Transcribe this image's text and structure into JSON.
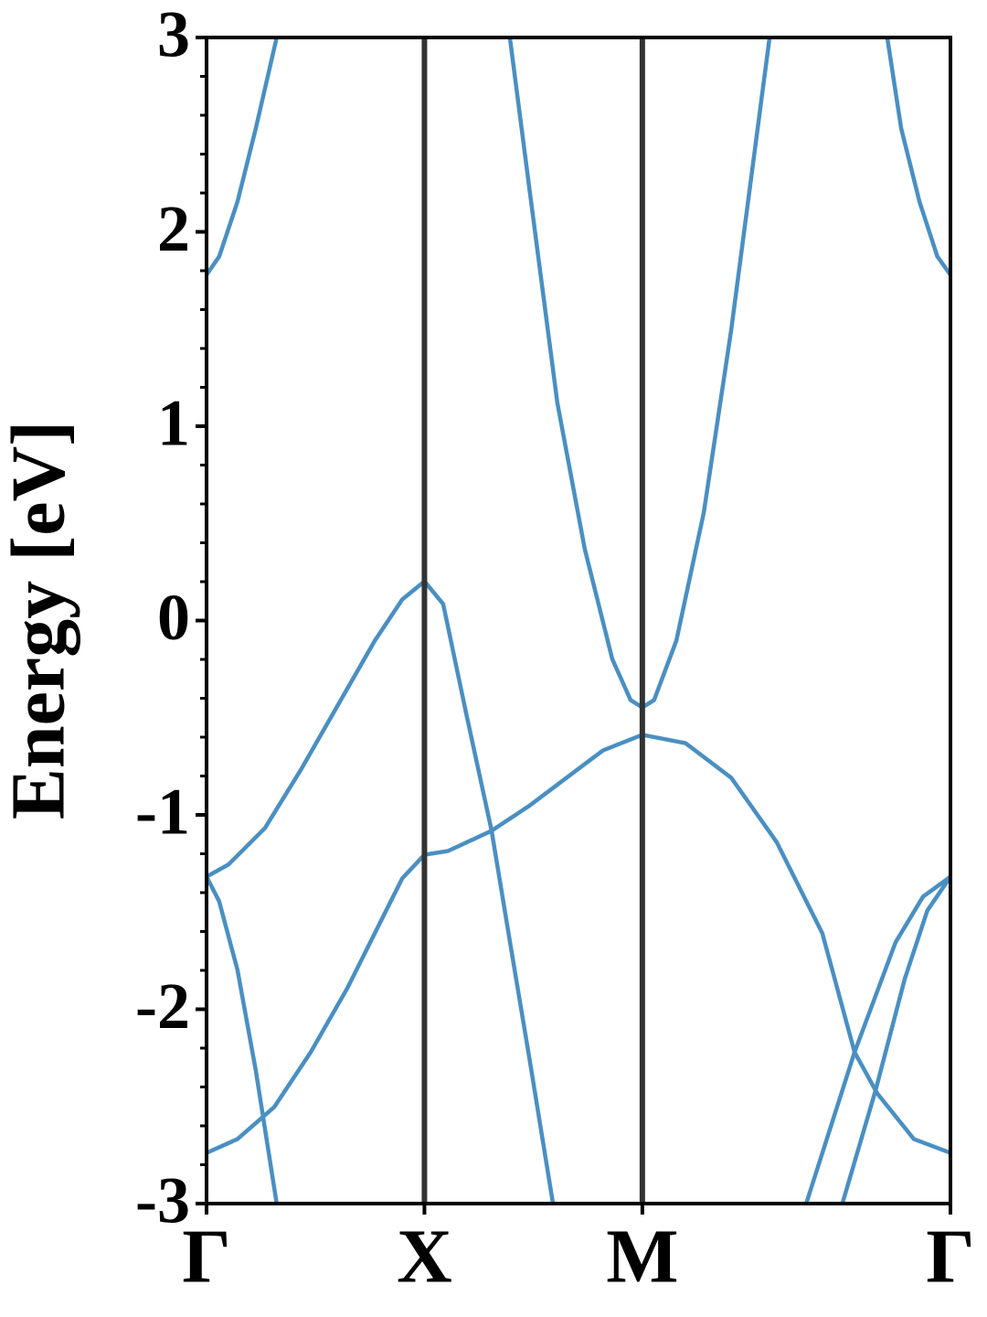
{
  "chart_data": {
    "type": "line",
    "y_label": "Energy [eV]",
    "xlim": [
      0,
      1.707
    ],
    "xticks": [
      {
        "value": 0,
        "label": "Γ"
      },
      {
        "value": 0.5,
        "label": "X"
      },
      {
        "value": 1.0,
        "label": "M"
      },
      {
        "value": 1.707,
        "label": "Γ"
      }
    ],
    "ylim": [
      -3,
      3
    ],
    "yticks": [
      -3,
      -2,
      -1,
      0,
      1,
      2,
      3
    ],
    "yminorticks": [
      -2.8,
      -2.6,
      -2.4,
      -2.2,
      -1.8,
      -1.6,
      -1.4,
      -1.2,
      -0.8,
      -0.6,
      -0.4,
      -0.2,
      0.2,
      0.4,
      0.6,
      0.8,
      1.2,
      1.4,
      1.6,
      1.8,
      2.2,
      2.4,
      2.6,
      2.8
    ],
    "kpoint_lines": true,
    "kpoint_line_color": "#333333",
    "color": "#4a8fc2",
    "series": [
      {
        "x": [
          0,
          0.029,
          0.071,
          0.113,
          0.161
        ],
        "values": [
          1.779,
          1.873,
          2.155,
          2.532,
          3
        ]
      },
      {
        "x": [
          1.707,
          1.677,
          1.636,
          1.594,
          1.562
        ],
        "values": [
          1.779,
          1.873,
          2.155,
          2.532,
          3
        ]
      },
      {
        "x": [
          0.696,
          0.742,
          0.805,
          0.868,
          0.931,
          0.973,
          1.0,
          1.027,
          1.078,
          1.141,
          1.204,
          1.292
        ],
        "values": [
          3,
          2.202,
          1.12,
          0.367,
          -0.198,
          -0.409,
          -0.447,
          -0.409,
          -0.104,
          0.555,
          1.496,
          3
        ]
      },
      {
        "x": [
          0,
          0.05,
          0.134,
          0.218,
          0.302,
          0.386,
          0.449,
          0.5,
          0.543,
          0.596,
          0.654,
          0.7,
          0.742,
          0.795
        ],
        "values": [
          -1.318,
          -1.256,
          -1.068,
          -0.762,
          -0.433,
          -0.104,
          0.108,
          0.202,
          0.085,
          -0.48,
          -1.08,
          -1.704,
          -2.268,
          -3
        ]
      },
      {
        "x": [
          0,
          0.071,
          0.155,
          0.239,
          0.323,
          0.407,
          0.449,
          0.5,
          0.554,
          0.654,
          0.742,
          0.826,
          0.91,
          1.0,
          1.099,
          1.204,
          1.308,
          1.413,
          1.487,
          1.539,
          1.623,
          1.707
        ],
        "values": [
          -2.739,
          -2.668,
          -2.504,
          -2.221,
          -1.892,
          -1.515,
          -1.327,
          -1.205,
          -1.186,
          -1.082,
          -0.951,
          -0.809,
          -0.668,
          -0.588,
          -0.631,
          -0.809,
          -1.139,
          -1.609,
          -2.221,
          -2.433,
          -2.668,
          -2.739
        ]
      },
      {
        "x": [
          0,
          0.029,
          0.071,
          0.113,
          0.161
        ],
        "values": [
          -1.318,
          -1.445,
          -1.798,
          -2.315,
          -3
        ]
      },
      {
        "x": [
          1.376,
          1.487,
          1.581,
          1.644,
          1.707
        ],
        "values": [
          -3,
          -2.221,
          -1.656,
          -1.421,
          -1.318
        ]
      },
      {
        "x": [
          1.459,
          1.535,
          1.602,
          1.654,
          1.707
        ],
        "values": [
          -3,
          -2.419,
          -1.845,
          -1.492,
          -1.318
        ]
      }
    ]
  }
}
